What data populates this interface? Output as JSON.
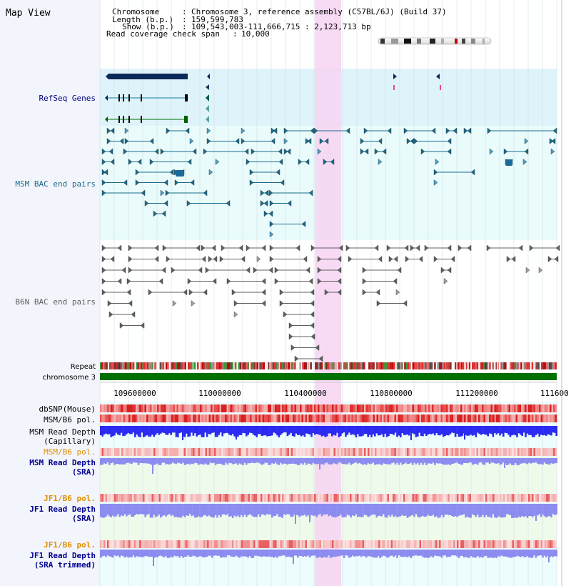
{
  "panel_title": "Map View",
  "header": {
    "lines": [
      {
        "label": "Chromosome",
        "value": "Chromosome 3, reference assembly (C57BL/6J) (Build 37)"
      },
      {
        "label": "Length (b.p.)",
        "value": "159,599,783"
      },
      {
        "label": "Show (b.p.)",
        "value": "109,543,003-111,666,715 : 2,123,713 bp"
      }
    ],
    "coverage_label": "Read coverage check span",
    "coverage_value": "10,000"
  },
  "tracks": {
    "refseq": {
      "label": "RefSeq Genes",
      "color": "#000080"
    },
    "msm_bac": {
      "label": "MSM BAC end pairs",
      "color": "#1a6a8a"
    },
    "b6n_bac": {
      "label": "B6N BAC end pairs",
      "color": "#606060"
    },
    "repeat": {
      "label": "Repeat"
    },
    "chromosome": {
      "label": "chromosome 3",
      "color": "#007000"
    }
  },
  "axis": {
    "ticks": [
      "109600000",
      "110000000",
      "110400000",
      "110800000",
      "111200000",
      "111600"
    ]
  },
  "lower_tracks": [
    {
      "id": "dbsnp",
      "lines": [
        "dbSNP(Mouse)"
      ],
      "color": "#000000"
    },
    {
      "id": "msm-b6-pol",
      "lines": [
        "MSM/B6 pol."
      ],
      "color": "#000000"
    },
    {
      "id": "msm-depth-cap",
      "lines": [
        "MSM Read Depth",
        "(Capillary)"
      ],
      "color": "#000000"
    },
    {
      "id": "msm-b6-pol-2",
      "lines": [
        "MSM/B6 pol."
      ],
      "color": "#e09000"
    },
    {
      "id": "msm-depth-sra",
      "lines": [
        "MSM Read Depth",
        "(SRA)"
      ],
      "color": "#000090"
    },
    {
      "id": "jf1-b6-pol",
      "lines": [
        "JF1/B6 pol."
      ],
      "color": "#e09000"
    },
    {
      "id": "jf1-depth-sra",
      "lines": [
        "JF1 Read Depth",
        "(SRA)"
      ],
      "color": "#000090"
    },
    {
      "id": "jf1-b6-pol-2",
      "lines": [
        "JF1/B6 pol."
      ],
      "color": "#e09000"
    },
    {
      "id": "jf1-depth-trim",
      "lines": [
        "JF1 Read Depth",
        "(SRA trimmed)"
      ],
      "color": "#000090"
    }
  ],
  "colors": {
    "highlight": "#f7d4f2",
    "refseq_bg": "#dff3fb",
    "plot_bg": "#e9fbfb",
    "grid": "#d0dfe6",
    "depth_dark": "#2a2af0",
    "depth_light": "#8c8cf0",
    "pol_red": "#e83030"
  }
}
